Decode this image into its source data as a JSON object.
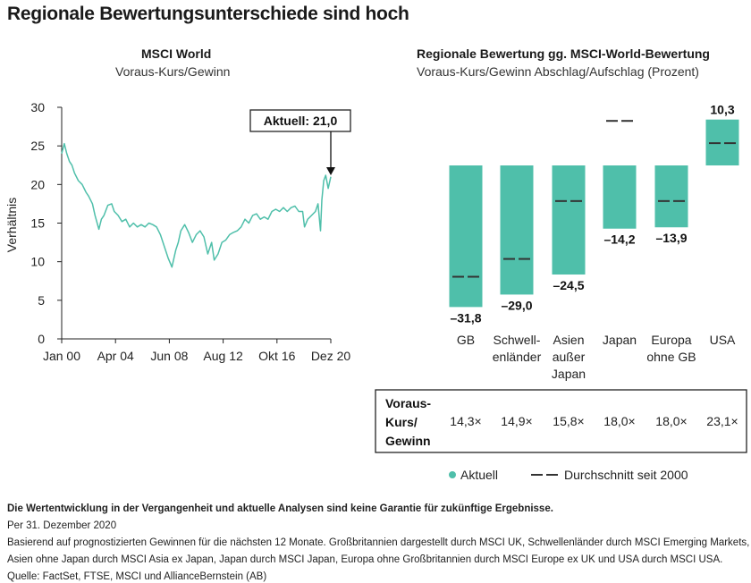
{
  "page": {
    "title": "Regionale Bewertungsunterschiede sind hoch"
  },
  "left_chart": {
    "title": "MSCI World",
    "subtitle": "Voraus-Kurs/Gewinn",
    "callout": "Aktuell: 21,0"
  },
  "right_chart": {
    "title": "Regionale Bewertung gg. MSCI-World-Bewertung",
    "subtitle": "Voraus-Kurs/Gewinn Abschlag/Aufschlag (Prozent)",
    "table_header": [
      "Voraus-",
      "Kurs/",
      "Gewinn"
    ],
    "legend": {
      "actual": "Aktuell",
      "average": "Durchschnitt seit 2000"
    }
  },
  "colors": {
    "teal": "#4fbfaa",
    "dark": "#333333"
  },
  "chart_data": [
    {
      "type": "line",
      "title": "MSCI World",
      "subtitle": "Voraus-Kurs/Gewinn",
      "ylabel": "Verhältnis",
      "ylim": [
        0,
        30
      ],
      "yticks": [
        "0",
        "5",
        "10",
        "15",
        "20",
        "25",
        "30"
      ],
      "xtick_labels": [
        "Jan 00",
        "Apr 04",
        "Jun 08",
        "Aug 12",
        "Okt 16",
        "Dez 20"
      ],
      "xlim": [
        2000.0,
        2021.0
      ],
      "grid": false,
      "series": [
        {
          "x": [
            2000.0,
            2000.2,
            2000.4,
            2000.6,
            2000.8,
            2001.0,
            2001.3,
            2001.6,
            2001.9,
            2002.1,
            2002.4,
            2002.6,
            2002.9,
            2003.1,
            2003.3,
            2003.6,
            2003.9,
            2004.1,
            2004.4,
            2004.7,
            2005.0,
            2005.3,
            2005.6,
            2005.9,
            2006.2,
            2006.5,
            2006.8,
            2007.1,
            2007.4,
            2007.7,
            2008.0,
            2008.3,
            2008.6,
            2008.9,
            2009.1,
            2009.3,
            2009.6,
            2009.9,
            2010.2,
            2010.5,
            2010.8,
            2011.1,
            2011.4,
            2011.7,
            2011.9,
            2012.2,
            2012.5,
            2012.8,
            2013.1,
            2013.4,
            2013.7,
            2014.0,
            2014.3,
            2014.6,
            2014.9,
            2015.2,
            2015.5,
            2015.8,
            2016.1,
            2016.4,
            2016.7,
            2017.0,
            2017.3,
            2017.6,
            2017.9,
            2018.2,
            2018.5,
            2018.8,
            2018.95,
            2019.2,
            2019.5,
            2019.8,
            2020.0,
            2020.2,
            2020.3,
            2020.45,
            2020.6,
            2020.8,
            2021.0
          ],
          "y": [
            24,
            25.3,
            24,
            23,
            22.5,
            21.5,
            20.5,
            20,
            19,
            18.5,
            17.5,
            16,
            14.2,
            15.5,
            16,
            17.3,
            17.5,
            16.5,
            16,
            15.2,
            15.5,
            14.5,
            15,
            14.5,
            14.8,
            14.5,
            15,
            14.8,
            14.5,
            13.5,
            12,
            10.5,
            9.3,
            11.5,
            12.5,
            14,
            14.8,
            13.8,
            12.5,
            13.5,
            14,
            13.2,
            11,
            12.5,
            10.2,
            11,
            12.5,
            12.8,
            13.5,
            13.8,
            14,
            14.5,
            15.5,
            15,
            16,
            16.2,
            15.5,
            15.8,
            15.5,
            16.5,
            16.8,
            16.5,
            17,
            16.5,
            17,
            17.2,
            16.5,
            16.5,
            14.5,
            15.5,
            16,
            16.5,
            17.5,
            14,
            18,
            20.5,
            21.2,
            19.5,
            21
          ]
        }
      ]
    },
    {
      "type": "bar",
      "title": "Regionale Bewertung gg. MSCI-World-Bewertung",
      "subtitle": "Voraus-Kurs/Gewinn Abschlag/Aufschlag (Prozent)",
      "categories": [
        [
          "GB"
        ],
        [
          "Schwell-",
          "enländer"
        ],
        [
          "Asien",
          "außer",
          "Japan"
        ],
        [
          "Japan"
        ],
        [
          "Europa",
          "ohne GB"
        ],
        [
          "USA"
        ]
      ],
      "series": [
        {
          "name": "Aktuell",
          "values": [
            -31.8,
            -29.0,
            -24.5,
            -14.2,
            -13.9,
            10.3
          ]
        },
        {
          "name": "Durchschnitt seit 2000",
          "values": [
            -25,
            -21,
            -8,
            10,
            -8,
            5
          ]
        }
      ],
      "value_labels": [
        "–31,8",
        "–29,0",
        "–24,5",
        "–14,2",
        "–13,9",
        "10,3"
      ],
      "table_values": [
        "14,3×",
        "14,9×",
        "15,8×",
        "18,0×",
        "18,0×",
        "23,1×"
      ],
      "ylim": [
        -32,
        11
      ],
      "grid": false
    }
  ],
  "footer": {
    "disclaimer": "Die Wertentwicklung in der Vergangenheit und aktuelle Analysen sind keine Garantie für zukünftige Ergebnisse.",
    "date": "Per 31. Dezember 2020",
    "note1": "Basierend auf prognostizierten Gewinnen für die nächsten 12 Monate. Großbritannien dargestellt durch MSCI UK, Schwellenländer durch MSCI Emerging Markets,",
    "note2": "Asien ohne Japan durch MSCI Asia ex Japan, Japan durch MSCI Japan, Europa ohne Großbritannien durch MSCI Europe ex UK und USA durch MSCI USA.",
    "source": "Quelle: FactSet, FTSE, MSCI und AllianceBernstein (AB)"
  }
}
